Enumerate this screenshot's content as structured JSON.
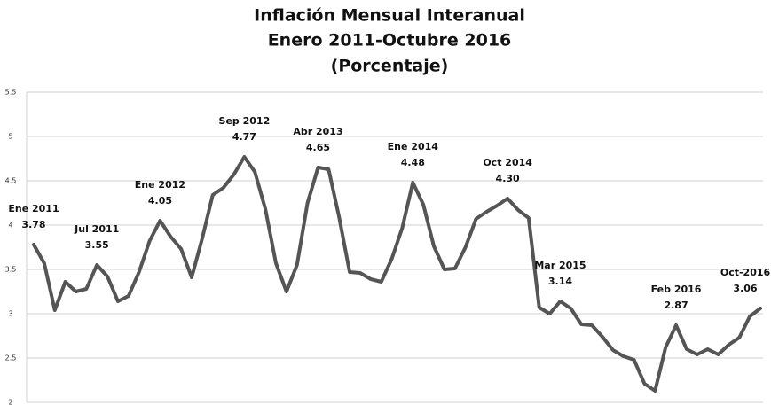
{
  "chart_data": {
    "type": "line",
    "title_lines": [
      "Inflación Mensual Interanual",
      "Enero 2011-Octubre 2016",
      "(Porcentaje)"
    ],
    "series": [
      {
        "name": null,
        "color": "#555555",
        "values": [
          3.78,
          3.57,
          3.04,
          3.36,
          3.25,
          3.28,
          3.55,
          3.42,
          3.14,
          3.2,
          3.47,
          3.82,
          4.05,
          3.87,
          3.73,
          3.41,
          3.85,
          4.34,
          4.42,
          4.57,
          4.77,
          4.6,
          4.18,
          3.57,
          3.25,
          3.55,
          4.25,
          4.65,
          4.63,
          4.09,
          3.47,
          3.46,
          3.39,
          3.36,
          3.62,
          3.97,
          4.48,
          4.23,
          3.76,
          3.5,
          3.51,
          3.75,
          4.07,
          4.15,
          4.22,
          4.3,
          4.17,
          4.08,
          3.07,
          3.0,
          3.14,
          3.06,
          2.88,
          2.87,
          2.74,
          2.59,
          2.52,
          2.48,
          2.21,
          2.13,
          2.62,
          2.87,
          2.6,
          2.54,
          2.6,
          2.54,
          2.65,
          2.73,
          2.97,
          3.06
        ]
      }
    ],
    "annotations": [
      {
        "index": 0,
        "label": "Ene 2011",
        "value_label": "3.78"
      },
      {
        "index": 6,
        "label": "Jul 2011",
        "value_label": "3.55"
      },
      {
        "index": 12,
        "label": "Ene 2012",
        "value_label": "4.05"
      },
      {
        "index": 20,
        "label": "Sep 2012",
        "value_label": "4.77"
      },
      {
        "index": 27,
        "label": "Abr 2013",
        "value_label": "4.65"
      },
      {
        "index": 36,
        "label": "Ene 2014",
        "value_label": "4.48"
      },
      {
        "index": 45,
        "label": "Oct 2014",
        "value_label": "4.30"
      },
      {
        "index": 50,
        "label": "Mar 2015",
        "value_label": "3.14"
      },
      {
        "index": 61,
        "label": "Feb 2016",
        "value_label": "2.87"
      },
      {
        "index": 69,
        "label": "Oct-2016",
        "value_label": "3.06"
      }
    ],
    "ylim": [
      2,
      5.5
    ],
    "yticks": [
      2,
      2.5,
      3,
      3.5,
      4,
      4.5,
      5,
      5.5
    ],
    "grid": true
  }
}
